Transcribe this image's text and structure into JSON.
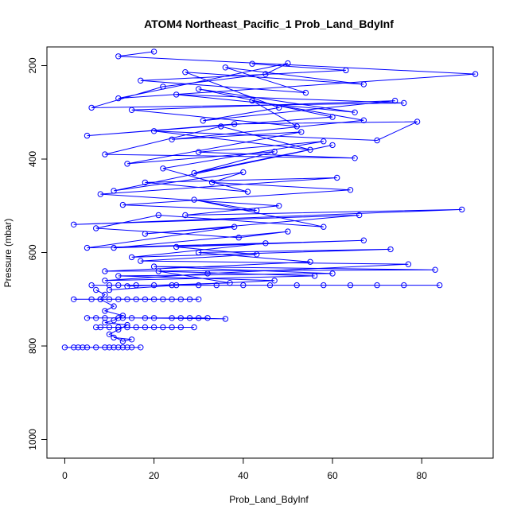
{
  "chart_data": {
    "type": "line",
    "title": "ATOM4 Northeast_Pacific_1 Prob_Land_BdyInf",
    "xlabel": "Prob_Land_BdyInf",
    "ylabel": "Pressure (mbar)",
    "xlim": [
      -4,
      96
    ],
    "ylim": [
      1040,
      160
    ],
    "y_reversed": true,
    "x_ticks": [
      0,
      20,
      40,
      60,
      80
    ],
    "y_ticks": [
      200,
      400,
      600,
      800,
      1000
    ],
    "grid": false,
    "legend": "none",
    "color": "#0000ff",
    "marker": "open-circle",
    "series": [
      {
        "values": [
          [
            20,
            170
          ],
          [
            12,
            180
          ],
          [
            92,
            218
          ],
          [
            12,
            270
          ],
          [
            50,
            195
          ],
          [
            45,
            218
          ],
          [
            22,
            245
          ],
          [
            6,
            290
          ],
          [
            76,
            280
          ],
          [
            25,
            262
          ],
          [
            65,
            300
          ],
          [
            30,
            250
          ],
          [
            60,
            310
          ],
          [
            5,
            350
          ],
          [
            38,
            325
          ],
          [
            79,
            320
          ],
          [
            70,
            360
          ],
          [
            20,
            340
          ],
          [
            55,
            380
          ],
          [
            35,
            330
          ],
          [
            9,
            390
          ],
          [
            65,
            398
          ],
          [
            30,
            385
          ],
          [
            58,
            362
          ],
          [
            22,
            420
          ],
          [
            41,
            470
          ],
          [
            18,
            450
          ],
          [
            61,
            440
          ],
          [
            8,
            475
          ],
          [
            48,
            500
          ],
          [
            27,
            520
          ],
          [
            89,
            508
          ],
          [
            2,
            540
          ],
          [
            66,
            520
          ],
          [
            18,
            560
          ],
          [
            38,
            545
          ],
          [
            5,
            590
          ],
          [
            45,
            580
          ],
          [
            15,
            610
          ],
          [
            73,
            593
          ],
          [
            30,
            600
          ],
          [
            55,
            620
          ],
          [
            9,
            640
          ],
          [
            83,
            637
          ],
          [
            20,
            630
          ],
          [
            60,
            645
          ],
          [
            12,
            650
          ],
          [
            47,
            660
          ],
          [
            25,
            670
          ],
          [
            10,
            680
          ]
        ]
      },
      {
        "values": [
          [
            42,
            196
          ],
          [
            63,
            210
          ],
          [
            17,
            232
          ],
          [
            54,
            258
          ],
          [
            36,
            204
          ],
          [
            67,
            240
          ],
          [
            27,
            214
          ],
          [
            48,
            290
          ],
          [
            31,
            318
          ],
          [
            74,
            275
          ],
          [
            15,
            295
          ],
          [
            52,
            330
          ],
          [
            42,
            275
          ],
          [
            67,
            317
          ],
          [
            24,
            358
          ],
          [
            53,
            342
          ],
          [
            14,
            410
          ],
          [
            47,
            384
          ],
          [
            29,
            430
          ],
          [
            60,
            370
          ],
          [
            11,
            468
          ],
          [
            40,
            428
          ],
          [
            33,
            450
          ],
          [
            64,
            466
          ],
          [
            13,
            498
          ],
          [
            43,
            510
          ],
          [
            29,
            487
          ],
          [
            58,
            545
          ],
          [
            21,
            520
          ],
          [
            7,
            548
          ],
          [
            39,
            568
          ],
          [
            50,
            555
          ],
          [
            11,
            590
          ],
          [
            67,
            574
          ],
          [
            25,
            588
          ],
          [
            43,
            604
          ],
          [
            17,
            618
          ],
          [
            77,
            625
          ],
          [
            32,
            645
          ],
          [
            9,
            660
          ],
          [
            56,
            650
          ],
          [
            21,
            640
          ],
          [
            37,
            665
          ],
          [
            14,
            672
          ]
        ]
      },
      {
        "values": [
          [
            2,
            700
          ],
          [
            10,
            700
          ],
          [
            16,
            700
          ],
          [
            22,
            700
          ],
          [
            26,
            700
          ],
          [
            30,
            700
          ],
          [
            8,
            700
          ],
          [
            14,
            700
          ],
          [
            20,
            700
          ],
          [
            24,
            700
          ],
          [
            12,
            700
          ],
          [
            18,
            700
          ],
          [
            6,
            700
          ],
          [
            28,
            700
          ]
        ]
      },
      {
        "values": [
          [
            5,
            740
          ],
          [
            12,
            740
          ],
          [
            20,
            740
          ],
          [
            28,
            740
          ],
          [
            36,
            742
          ],
          [
            15,
            740
          ],
          [
            9,
            740
          ],
          [
            24,
            740
          ],
          [
            32,
            740
          ],
          [
            18,
            740
          ],
          [
            7,
            740
          ],
          [
            26,
            740
          ],
          [
            30,
            740
          ],
          [
            13,
            740
          ]
        ]
      },
      {
        "values": [
          [
            7,
            760
          ],
          [
            12,
            760
          ],
          [
            18,
            760
          ],
          [
            24,
            760
          ],
          [
            29,
            760
          ],
          [
            10,
            760
          ],
          [
            16,
            760
          ],
          [
            22,
            760
          ],
          [
            26,
            760
          ],
          [
            14,
            760
          ],
          [
            20,
            760
          ],
          [
            8,
            760
          ]
        ]
      },
      {
        "values": [
          [
            0,
            803
          ],
          [
            2,
            803
          ],
          [
            4,
            803
          ],
          [
            7,
            803
          ],
          [
            9,
            803
          ],
          [
            11,
            803
          ],
          [
            13,
            803
          ],
          [
            15,
            803
          ],
          [
            17,
            803
          ],
          [
            10,
            803
          ],
          [
            14,
            803
          ],
          [
            5,
            803
          ],
          [
            12,
            803
          ],
          [
            3,
            803
          ]
        ]
      },
      {
        "values": [
          [
            6,
            670
          ],
          [
            12,
            670
          ],
          [
            20,
            670
          ],
          [
            30,
            670
          ],
          [
            40,
            670
          ],
          [
            52,
            670
          ],
          [
            58,
            670
          ],
          [
            64,
            670
          ],
          [
            70,
            670
          ],
          [
            76,
            670
          ],
          [
            84,
            670
          ],
          [
            46,
            670
          ],
          [
            34,
            670
          ],
          [
            24,
            670
          ],
          [
            16,
            670
          ],
          [
            10,
            670
          ]
        ]
      },
      {
        "values": [
          [
            7,
            680
          ],
          [
            9,
            690
          ],
          [
            8,
            700
          ],
          [
            11,
            715
          ],
          [
            9,
            725
          ],
          [
            13,
            735
          ],
          [
            11,
            745
          ],
          [
            9,
            750
          ],
          [
            14,
            755
          ],
          [
            12,
            765
          ],
          [
            10,
            775
          ],
          [
            13,
            790
          ],
          [
            15,
            786
          ],
          [
            11,
            782
          ]
        ]
      }
    ]
  }
}
